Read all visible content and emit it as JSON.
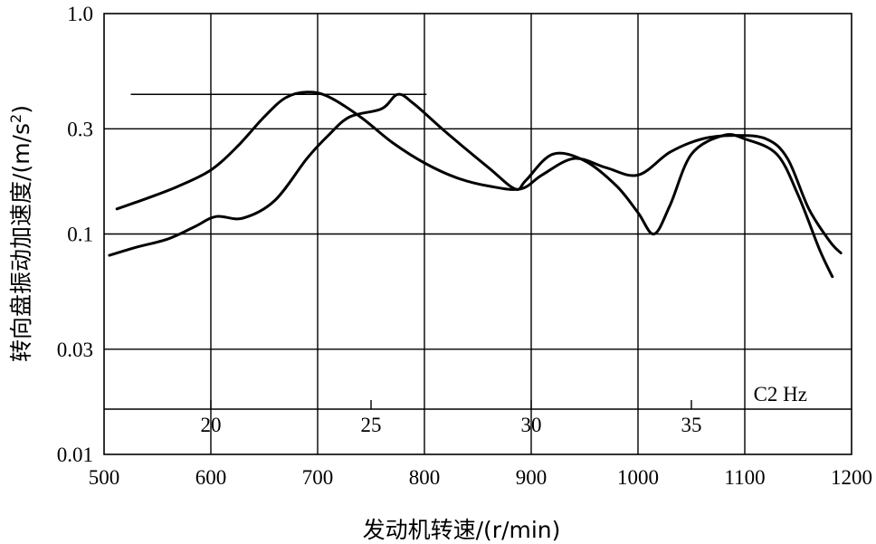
{
  "chart_data": {
    "type": "line",
    "xlabel": "发动机转速/(r/min)",
    "ylabel": "转向盘振动加速度/(m/s²)",
    "ylabel_main": "转向盘振动加速度/(m/s",
    "ylabel_sup": "2",
    "ylabel_close": ")",
    "xlim": [
      500,
      1200
    ],
    "ylim": [
      0.01,
      1.0
    ],
    "yscale": "log",
    "grid": true,
    "x_ticks": [
      500,
      600,
      700,
      800,
      900,
      1000,
      1100,
      1200
    ],
    "x_tick_labels": [
      "500",
      "600",
      "700",
      "800",
      "900",
      "1000",
      "1100",
      "1200"
    ],
    "y_ticks": [
      0.01,
      0.03,
      0.1,
      0.3,
      1.0
    ],
    "y_tick_labels": [
      "0.01",
      "0.03",
      "0.1",
      "0.3",
      "1.0"
    ],
    "secondary_axis": {
      "label": "C2 Hz",
      "ticks": [
        {
          "label": "20",
          "rpm": 600
        },
        {
          "label": "25",
          "rpm": 750
        },
        {
          "label": "30",
          "rpm": 900
        },
        {
          "label": "35",
          "rpm": 1050
        }
      ]
    },
    "reference_line": {
      "y": 0.43,
      "x_start": 525,
      "x_end": 802
    },
    "series": [
      {
        "x": [
          512,
          540,
          570,
          600,
          625,
          650,
          670,
          690,
          710,
          740,
          770,
          800,
          830,
          860,
          890,
          910,
          940,
          970,
          1000,
          1030,
          1060,
          1090,
          1120,
          1140,
          1160,
          1180,
          1190
        ],
        "y": [
          0.13,
          0.145,
          0.165,
          0.195,
          0.25,
          0.34,
          0.415,
          0.44,
          0.42,
          0.34,
          0.26,
          0.21,
          0.18,
          0.165,
          0.16,
          0.185,
          0.22,
          0.2,
          0.185,
          0.235,
          0.27,
          0.28,
          0.27,
          0.22,
          0.13,
          0.092,
          0.082
        ]
      },
      {
        "x": [
          505,
          530,
          560,
          585,
          605,
          630,
          660,
          690,
          710,
          730,
          760,
          775,
          790,
          820,
          860,
          885,
          895,
          920,
          950,
          980,
          1000,
          1015,
          1030,
          1050,
          1080,
          1100,
          1130,
          1150,
          1170,
          1182
        ],
        "y": [
          0.08,
          0.087,
          0.095,
          0.108,
          0.12,
          0.118,
          0.142,
          0.22,
          0.28,
          0.34,
          0.37,
          0.43,
          0.39,
          0.29,
          0.2,
          0.16,
          0.175,
          0.23,
          0.215,
          0.165,
          0.125,
          0.1,
          0.135,
          0.23,
          0.28,
          0.27,
          0.23,
          0.15,
          0.085,
          0.064
        ]
      }
    ]
  }
}
